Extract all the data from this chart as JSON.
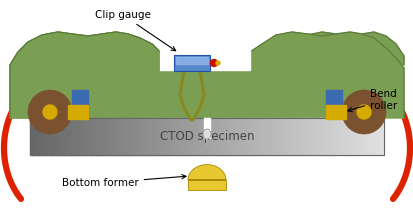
{
  "bg_color": "#ffffff",
  "specimen_text": "CTOD specimen",
  "specimen_text_color": "#444444",
  "green_blob_color": "#7a9e52",
  "green_blob_edge": "#5a7a3a",
  "blue_rect_color": "#3a6ab0",
  "yellow_roller_color": "#d4aa00",
  "brown_roller_color": "#7a5230",
  "red_arrow_color": "#dd2200",
  "bottom_former_color": "#e8c830",
  "clip_gauge_label": "Clip gauge",
  "bend_roller_label": "Bend\nroller",
  "bottom_former_label": "Bottom former"
}
